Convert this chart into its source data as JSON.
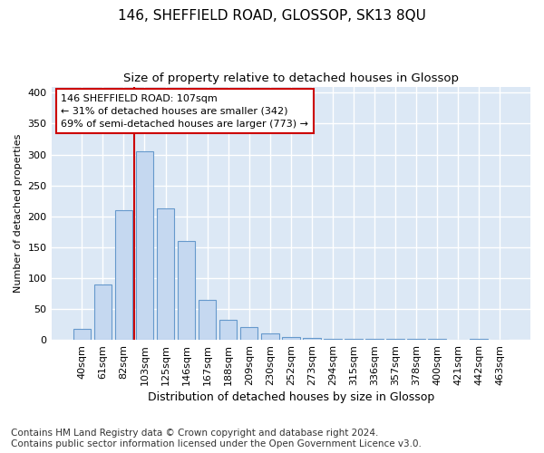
{
  "title": "146, SHEFFIELD ROAD, GLOSSOP, SK13 8QU",
  "subtitle": "Size of property relative to detached houses in Glossop",
  "xlabel": "Distribution of detached houses by size in Glossop",
  "ylabel": "Number of detached properties",
  "footer_line1": "Contains HM Land Registry data © Crown copyright and database right 2024.",
  "footer_line2": "Contains public sector information licensed under the Open Government Licence v3.0.",
  "bin_labels": [
    "40sqm",
    "61sqm",
    "82sqm",
    "103sqm",
    "125sqm",
    "146sqm",
    "167sqm",
    "188sqm",
    "209sqm",
    "230sqm",
    "252sqm",
    "273sqm",
    "294sqm",
    "315sqm",
    "336sqm",
    "357sqm",
    "378sqm",
    "400sqm",
    "421sqm",
    "442sqm",
    "463sqm"
  ],
  "bar_values": [
    17,
    90,
    210,
    305,
    213,
    160,
    65,
    32,
    20,
    10,
    5,
    3,
    2,
    2,
    1,
    2,
    1,
    1,
    0,
    1,
    0
  ],
  "bar_color": "#c5d8f0",
  "bar_edge_color": "#6699cc",
  "vline_color": "#cc0000",
  "vline_bin_index": 3,
  "annotation_text": "146 SHEFFIELD ROAD: 107sqm\n← 31% of detached houses are smaller (342)\n69% of semi-detached houses are larger (773) →",
  "annotation_box_color": "#ffffff",
  "annotation_box_edge": "#cc0000",
  "ylim": [
    0,
    410
  ],
  "yticks": [
    0,
    50,
    100,
    150,
    200,
    250,
    300,
    350,
    400
  ],
  "background_color": "#dce8f5",
  "grid_color": "#ffffff",
  "title_fontsize": 11,
  "subtitle_fontsize": 9.5,
  "xlabel_fontsize": 9,
  "ylabel_fontsize": 8,
  "tick_fontsize": 8,
  "footer_fontsize": 7.5
}
